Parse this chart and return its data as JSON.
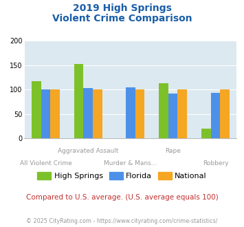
{
  "title_line1": "2019 High Springs",
  "title_line2": "Violent Crime Comparison",
  "categories": [
    "All Violent Crime",
    "Aggravated Assault",
    "Murder & Mans...",
    "Rape",
    "Robbery"
  ],
  "label_row_top": [
    "",
    "Aggravated Assault",
    "",
    "Rape",
    ""
  ],
  "label_row_bot": [
    "All Violent Crime",
    "",
    "Murder & Mans...",
    "",
    "Robbery"
  ],
  "series": {
    "High Springs": [
      118,
      153,
      0,
      113,
      20
    ],
    "Florida": [
      100,
      103,
      105,
      92,
      93
    ],
    "National": [
      100,
      100,
      100,
      100,
      100
    ]
  },
  "colors": {
    "High Springs": "#7dc12a",
    "Florida": "#4d90e8",
    "National": "#f5a623"
  },
  "ylim": [
    0,
    200
  ],
  "yticks": [
    0,
    50,
    100,
    150,
    200
  ],
  "background_color": "#dce9f0",
  "title_color": "#1a5fa8",
  "label_color": "#999999",
  "footer_color": "#999999",
  "subtitle_color": "#c03030",
  "subtitle_text": "Compared to U.S. average. (U.S. average equals 100)",
  "footer_text": "© 2025 CityRating.com - https://www.cityrating.com/crime-statistics/"
}
